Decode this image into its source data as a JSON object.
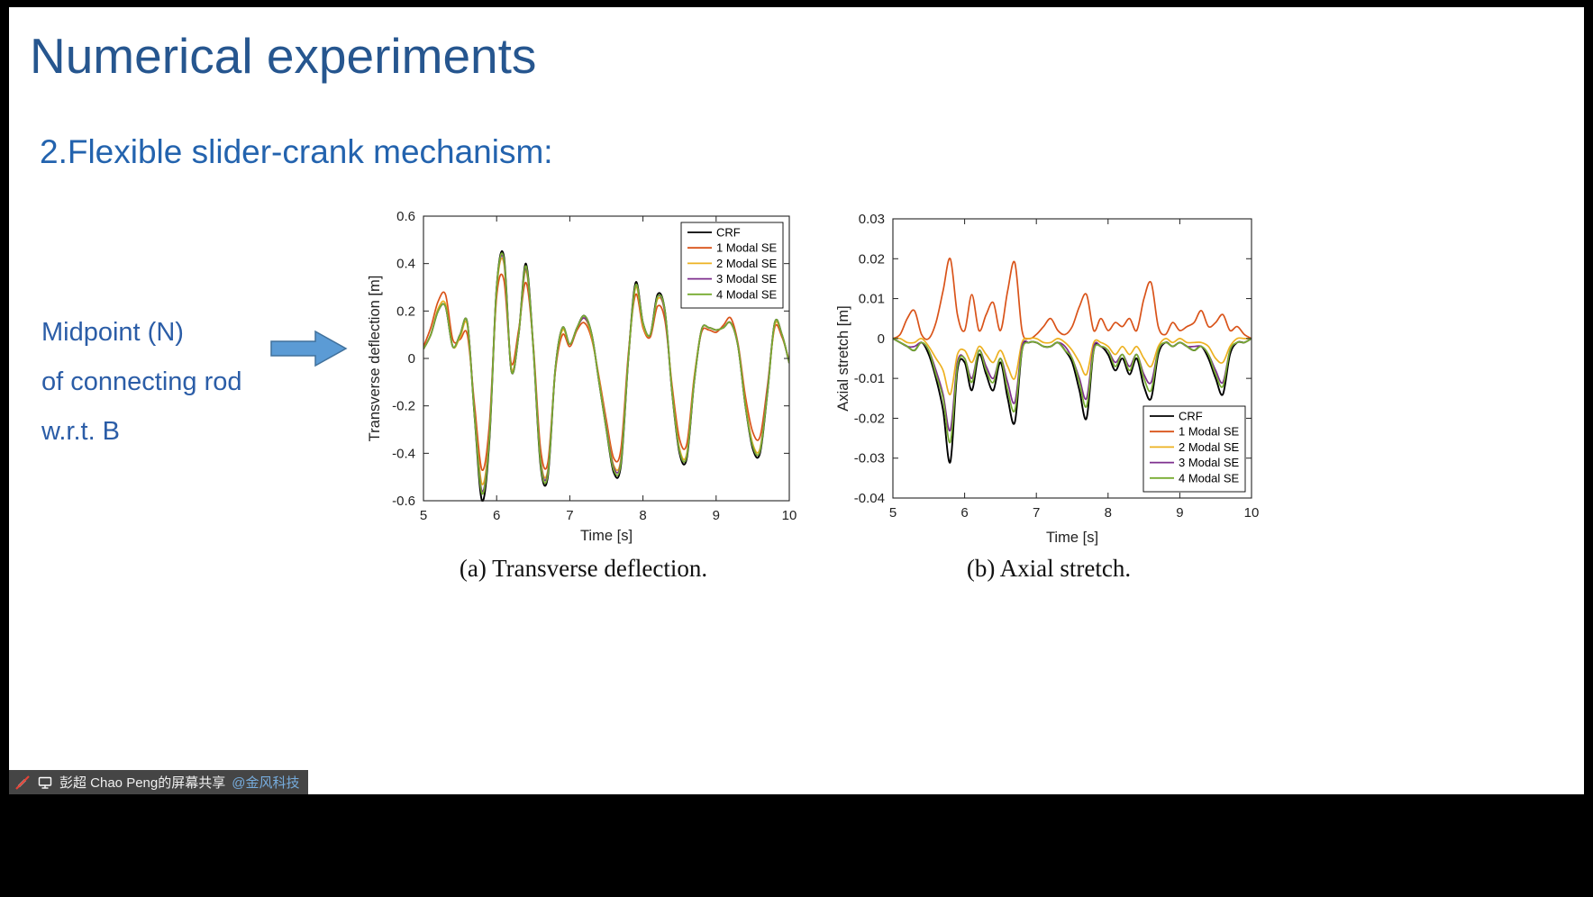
{
  "slide": {
    "title": "Numerical experiments",
    "subtitle": "2.Flexible slider-crank mechanism:",
    "annotation": [
      "Midpoint (N)",
      "of connecting rod",
      "w.r.t. B"
    ],
    "caption_a": "(a) Transverse deflection.",
    "caption_b": "(b) Axial stretch."
  },
  "statusbar": {
    "share_text": "彭超 Chao Peng的屏幕共享",
    "share_link": "@金风科技"
  },
  "colors": {
    "title_blue": "#26568F",
    "subtitle_blue": "#2363AE",
    "annotation_blue": "#2B5DA7",
    "arrow_fill": "#5B9BD5",
    "arrow_stroke": "#41719C",
    "link_blue": "#6FA8DC",
    "toolbar_bg": "#3C3C3C"
  },
  "chart_data": [
    {
      "type": "line",
      "title": "",
      "xlabel": "Time [s]",
      "ylabel": "Transverse deflection [m]",
      "xlim": [
        5,
        10
      ],
      "ylim": [
        -0.6,
        0.6
      ],
      "xticks": [
        5,
        6,
        7,
        8,
        9,
        10
      ],
      "yticks": [
        0.6,
        0.4,
        0.2,
        0,
        -0.2,
        -0.4,
        -0.6
      ],
      "grid": false,
      "legend_position": "top-right",
      "x": [
        5,
        5.1,
        5.2,
        5.3,
        5.4,
        5.5,
        5.6,
        5.7,
        5.8,
        5.9,
        6,
        6.1,
        6.2,
        6.3,
        6.4,
        6.5,
        6.6,
        6.7,
        6.8,
        6.9,
        7,
        7.1,
        7.2,
        7.3,
        7.4,
        7.5,
        7.6,
        7.7,
        7.8,
        7.9,
        8,
        8.1,
        8.2,
        8.3,
        8.4,
        8.5,
        8.6,
        8.7,
        8.8,
        8.9,
        9,
        9.1,
        9.2,
        9.3,
        9.4,
        9.5,
        9.6,
        9.7,
        9.8,
        9.9,
        10
      ],
      "series": [
        {
          "name": "CRF",
          "color": "#000000",
          "values": [
            0.04,
            0.1,
            0.2,
            0.22,
            0.05,
            0.1,
            0.15,
            -0.25,
            -0.6,
            -0.35,
            0.3,
            0.43,
            -0.05,
            0.1,
            0.4,
            0.05,
            -0.45,
            -0.5,
            -0.05,
            0.13,
            0.06,
            0.13,
            0.18,
            0.1,
            -0.1,
            -0.3,
            -0.48,
            -0.45,
            0.0,
            0.32,
            0.15,
            0.1,
            0.27,
            0.2,
            -0.15,
            -0.4,
            -0.42,
            -0.1,
            0.12,
            0.13,
            0.12,
            0.13,
            0.15,
            0.05,
            -0.2,
            -0.38,
            -0.4,
            -0.15,
            0.15,
            0.1,
            -0.02
          ]
        },
        {
          "name": "1 Modal SE",
          "color": "#D95319",
          "values": [
            0.05,
            0.13,
            0.24,
            0.27,
            0.08,
            0.08,
            0.1,
            -0.2,
            -0.47,
            -0.28,
            0.26,
            0.33,
            -0.02,
            0.12,
            0.32,
            0.06,
            -0.38,
            -0.44,
            -0.06,
            0.1,
            0.05,
            0.12,
            0.15,
            0.08,
            -0.08,
            -0.26,
            -0.42,
            -0.38,
            0.02,
            0.27,
            0.13,
            0.09,
            0.22,
            0.16,
            -0.12,
            -0.34,
            -0.36,
            -0.08,
            0.11,
            0.12,
            0.11,
            0.14,
            0.17,
            0.06,
            -0.16,
            -0.31,
            -0.33,
            -0.12,
            0.13,
            0.09,
            -0.01
          ]
        },
        {
          "name": "2 Modal SE",
          "color": "#EDB120",
          "values": [
            0.04,
            0.1,
            0.21,
            0.23,
            0.05,
            0.09,
            0.14,
            -0.23,
            -0.53,
            -0.32,
            0.29,
            0.4,
            -0.04,
            0.1,
            0.37,
            0.05,
            -0.42,
            -0.47,
            -0.05,
            0.12,
            0.06,
            0.13,
            0.17,
            0.09,
            -0.09,
            -0.28,
            -0.45,
            -0.42,
            0.0,
            0.3,
            0.14,
            0.1,
            0.25,
            0.19,
            -0.14,
            -0.38,
            -0.4,
            -0.09,
            0.12,
            0.13,
            0.12,
            0.13,
            0.15,
            0.05,
            -0.19,
            -0.36,
            -0.38,
            -0.14,
            0.14,
            0.1,
            -0.02
          ]
        },
        {
          "name": "3 Modal SE",
          "color": "#7E2F8E",
          "values": [
            0.04,
            0.1,
            0.2,
            0.22,
            0.05,
            0.1,
            0.15,
            -0.24,
            -0.56,
            -0.33,
            0.3,
            0.41,
            -0.05,
            0.1,
            0.38,
            0.05,
            -0.43,
            -0.48,
            -0.05,
            0.13,
            0.06,
            0.13,
            0.17,
            0.1,
            -0.1,
            -0.29,
            -0.46,
            -0.43,
            0.0,
            0.31,
            0.15,
            0.1,
            0.26,
            0.19,
            -0.15,
            -0.39,
            -0.41,
            -0.1,
            0.12,
            0.13,
            0.12,
            0.13,
            0.15,
            0.05,
            -0.2,
            -0.37,
            -0.39,
            -0.14,
            0.15,
            0.1,
            -0.02
          ]
        },
        {
          "name": "4 Modal SE",
          "color": "#77AC30",
          "values": [
            0.04,
            0.1,
            0.2,
            0.22,
            0.05,
            0.1,
            0.15,
            -0.25,
            -0.57,
            -0.34,
            0.3,
            0.42,
            -0.05,
            0.1,
            0.39,
            0.05,
            -0.44,
            -0.49,
            -0.05,
            0.13,
            0.06,
            0.13,
            0.18,
            0.1,
            -0.1,
            -0.3,
            -0.47,
            -0.44,
            0.0,
            0.31,
            0.15,
            0.1,
            0.26,
            0.2,
            -0.15,
            -0.39,
            -0.41,
            -0.1,
            0.12,
            0.13,
            0.12,
            0.13,
            0.15,
            0.05,
            -0.2,
            -0.37,
            -0.39,
            -0.15,
            0.15,
            0.1,
            -0.02
          ]
        }
      ]
    },
    {
      "type": "line",
      "title": "",
      "xlabel": "Time [s]",
      "ylabel": "Axial stretch [m]",
      "xlim": [
        5,
        10
      ],
      "ylim": [
        -0.04,
        0.03
      ],
      "xticks": [
        5,
        6,
        7,
        8,
        9,
        10
      ],
      "yticks": [
        0.03,
        0.02,
        0.01,
        0,
        -0.01,
        -0.02,
        -0.03,
        -0.04
      ],
      "grid": false,
      "legend_position": "bottom-right",
      "x": [
        5,
        5.1,
        5.2,
        5.3,
        5.4,
        5.5,
        5.6,
        5.7,
        5.8,
        5.9,
        6,
        6.1,
        6.2,
        6.3,
        6.4,
        6.5,
        6.6,
        6.7,
        6.8,
        6.9,
        7,
        7.1,
        7.2,
        7.3,
        7.4,
        7.5,
        7.6,
        7.7,
        7.8,
        7.9,
        8,
        8.1,
        8.2,
        8.3,
        8.4,
        8.5,
        8.6,
        8.7,
        8.8,
        8.9,
        9,
        9.1,
        9.2,
        9.3,
        9.4,
        9.5,
        9.6,
        9.7,
        9.8,
        9.9,
        10
      ],
      "series": [
        {
          "name": "CRF",
          "color": "#000000",
          "values": [
            0,
            -0.001,
            -0.002,
            -0.003,
            -0.001,
            -0.004,
            -0.01,
            -0.018,
            -0.031,
            -0.008,
            -0.006,
            -0.013,
            -0.004,
            -0.009,
            -0.013,
            -0.006,
            -0.015,
            -0.021,
            -0.003,
            -0.001,
            -0.001,
            -0.002,
            -0.002,
            -0.001,
            -0.003,
            -0.006,
            -0.013,
            -0.02,
            -0.003,
            -0.002,
            -0.004,
            -0.008,
            -0.005,
            -0.009,
            -0.005,
            -0.012,
            -0.015,
            -0.004,
            -0.001,
            -0.002,
            -0.001,
            -0.002,
            -0.003,
            -0.002,
            -0.005,
            -0.01,
            -0.014,
            -0.004,
            -0.001,
            -0.001,
            0
          ]
        },
        {
          "name": "1 Modal SE",
          "color": "#D95319",
          "values": [
            0,
            0.001,
            0.005,
            0.007,
            0.001,
            0,
            0.004,
            0.012,
            0.02,
            0.006,
            0.002,
            0.011,
            0.002,
            0.006,
            0.009,
            0.002,
            0.012,
            0.019,
            0.002,
            0,
            0.001,
            0.003,
            0.005,
            0.002,
            0.001,
            0.003,
            0.008,
            0.011,
            0.002,
            0.005,
            0.002,
            0.004,
            0.003,
            0.005,
            0.002,
            0.01,
            0.014,
            0.003,
            0.001,
            0.004,
            0.002,
            0.003,
            0.004,
            0.007,
            0.003,
            0.004,
            0.006,
            0.002,
            0.003,
            0.001,
            0
          ]
        },
        {
          "name": "2 Modal SE",
          "color": "#EDB120",
          "values": [
            0,
            0,
            -0.001,
            -0.001,
            0,
            -0.002,
            -0.005,
            -0.008,
            -0.014,
            -0.004,
            -0.003,
            -0.006,
            -0.002,
            -0.004,
            -0.006,
            -0.003,
            -0.007,
            -0.01,
            -0.001,
            0,
            0,
            -0.001,
            -0.001,
            0,
            -0.001,
            -0.003,
            -0.006,
            -0.009,
            -0.001,
            -0.001,
            -0.002,
            -0.004,
            -0.002,
            -0.004,
            -0.002,
            -0.005,
            -0.007,
            -0.002,
            0,
            -0.001,
            0,
            -0.001,
            -0.001,
            -0.001,
            -0.002,
            -0.005,
            -0.006,
            -0.002,
            0,
            0,
            0
          ]
        },
        {
          "name": "3 Modal SE",
          "color": "#7E2F8E",
          "values": [
            0,
            -0.001,
            -0.002,
            -0.002,
            -0.001,
            -0.003,
            -0.008,
            -0.014,
            -0.023,
            -0.006,
            -0.005,
            -0.01,
            -0.003,
            -0.007,
            -0.01,
            -0.005,
            -0.011,
            -0.016,
            -0.002,
            -0.001,
            -0.001,
            -0.002,
            -0.002,
            -0.001,
            -0.002,
            -0.005,
            -0.01,
            -0.015,
            -0.002,
            -0.002,
            -0.003,
            -0.006,
            -0.004,
            -0.007,
            -0.004,
            -0.009,
            -0.011,
            -0.003,
            -0.001,
            -0.002,
            -0.001,
            -0.002,
            -0.002,
            -0.002,
            -0.004,
            -0.008,
            -0.011,
            -0.003,
            -0.001,
            -0.001,
            0
          ]
        },
        {
          "name": "4 Modal SE",
          "color": "#77AC30",
          "values": [
            0,
            -0.001,
            -0.002,
            -0.003,
            -0.001,
            -0.003,
            -0.009,
            -0.015,
            -0.026,
            -0.007,
            -0.005,
            -0.011,
            -0.003,
            -0.008,
            -0.011,
            -0.005,
            -0.013,
            -0.018,
            -0.003,
            -0.001,
            -0.001,
            -0.002,
            -0.002,
            -0.001,
            -0.003,
            -0.005,
            -0.011,
            -0.017,
            -0.003,
            -0.002,
            -0.003,
            -0.007,
            -0.004,
            -0.008,
            -0.004,
            -0.01,
            -0.013,
            -0.003,
            -0.001,
            -0.002,
            -0.001,
            -0.002,
            -0.003,
            -0.002,
            -0.004,
            -0.009,
            -0.012,
            -0.003,
            -0.001,
            -0.001,
            0
          ]
        }
      ]
    }
  ]
}
